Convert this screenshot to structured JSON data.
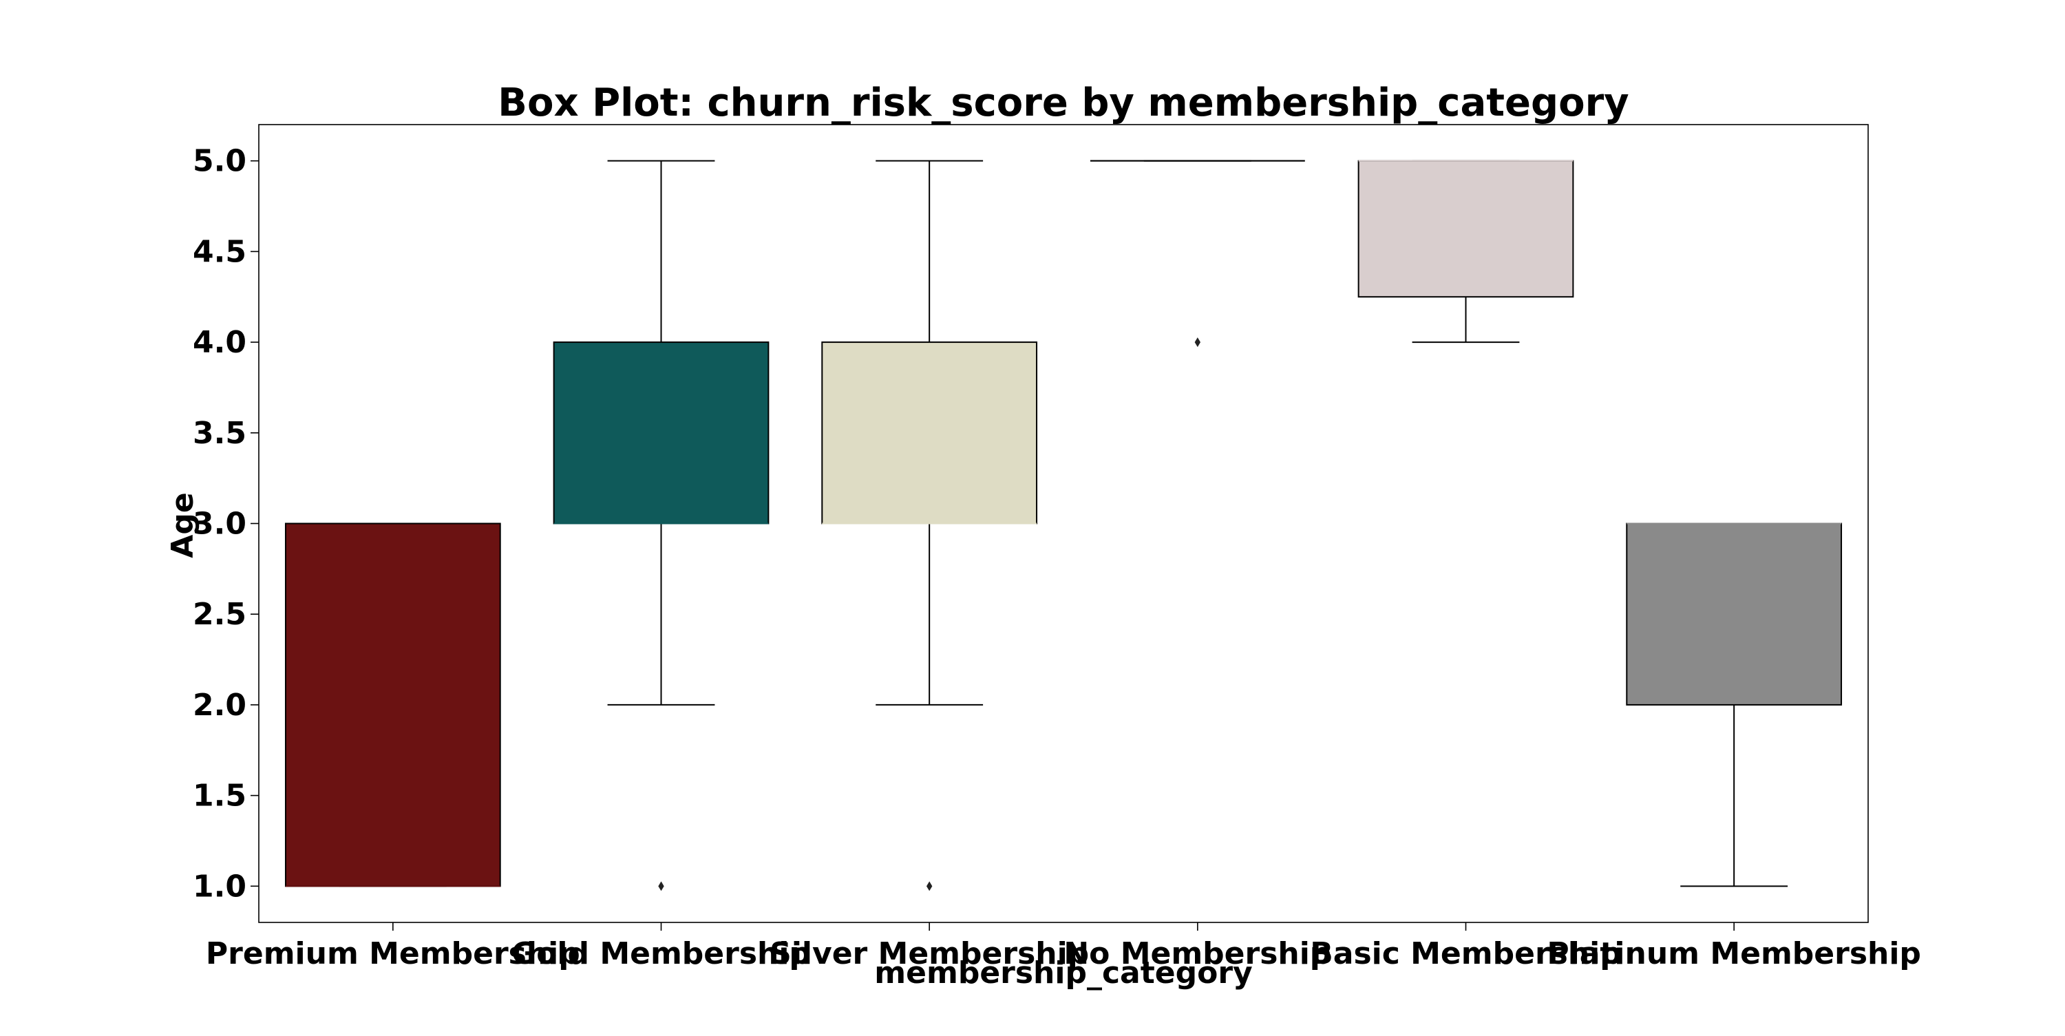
{
  "chart_data": {
    "type": "box",
    "title": "Box Plot: churn_risk_score by membership_category",
    "xlabel": "membership_category",
    "ylabel": "Age",
    "ylim": [
      0.8,
      5.2
    ],
    "yticks": [
      "1.0",
      "1.5",
      "2.0",
      "2.5",
      "3.0",
      "3.5",
      "4.0",
      "4.5",
      "5.0"
    ],
    "grid": false,
    "categories": [
      "Premium Membership",
      "Gold Membership",
      "Silver Membership",
      "No Membership",
      "Basic Membership",
      "Platinum Membership"
    ],
    "boxes": [
      {
        "category": "Premium Membership",
        "color": "#6b1212",
        "whisker_low": 1.0,
        "q1": 1.0,
        "median": 1.0,
        "q3": 3.0,
        "whisker_high": 3.0,
        "outliers": []
      },
      {
        "category": "Gold Membership",
        "color": "#0f5a5a",
        "whisker_low": 2.0,
        "q1": 3.0,
        "median": 3.0,
        "q3": 4.0,
        "whisker_high": 5.0,
        "outliers": [
          1.0
        ]
      },
      {
        "category": "Silver Membership",
        "color": "#dedcc4",
        "whisker_low": 2.0,
        "q1": 3.0,
        "median": 3.0,
        "q3": 4.0,
        "whisker_high": 5.0,
        "outliers": [
          1.0
        ]
      },
      {
        "category": "No Membership",
        "color": "#ffffff",
        "whisker_low": 5.0,
        "q1": 5.0,
        "median": 5.0,
        "q3": 5.0,
        "whisker_high": 5.0,
        "outliers": [
          4.0
        ]
      },
      {
        "category": "Basic Membership",
        "color": "#d9cece",
        "whisker_low": 4.0,
        "q1": 4.25,
        "median": 5.0,
        "q3": 5.0,
        "whisker_high": 5.0,
        "outliers": []
      },
      {
        "category": "Platinum Membership",
        "color": "#8a8a8a",
        "whisker_low": 1.0,
        "q1": 2.0,
        "median": 3.0,
        "q3": 3.0,
        "whisker_high": 3.0,
        "outliers": []
      }
    ]
  }
}
